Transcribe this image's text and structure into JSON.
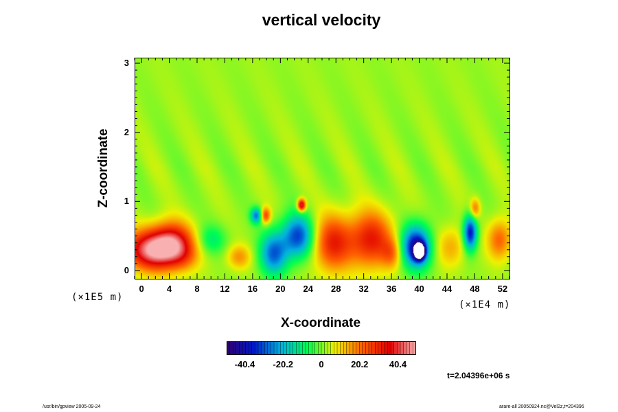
{
  "chart_data": {
    "type": "heatmap",
    "title": "vertical velocity",
    "xlabel": "X-coordinate",
    "ylabel": "Z-coordinate",
    "x_scale_label": "(×1E4 m)",
    "y_scale_label": "(×1E5 m)",
    "xlim": [
      -1,
      53
    ],
    "ylim": [
      -0.12,
      3.08
    ],
    "x_ticks": [
      0,
      4,
      8,
      12,
      16,
      20,
      24,
      28,
      32,
      36,
      40,
      44,
      48,
      52
    ],
    "x_tick_labels": [
      "0",
      "4",
      "8",
      "12",
      "16",
      "20",
      "24",
      "28",
      "32",
      "36",
      "40",
      "44",
      "48",
      "52"
    ],
    "y_ticks": [
      0,
      1,
      2,
      3
    ],
    "y_tick_labels": [
      "0",
      "1",
      "2",
      "3"
    ],
    "colorbar": {
      "range": [
        -50,
        50
      ],
      "ticks": [
        -40.4,
        -20.2,
        0,
        20.2,
        40.4
      ],
      "tick_labels": [
        "-40.4",
        "-20.2",
        "0",
        "20.2",
        "40.4"
      ],
      "colors": [
        "#300070",
        "#0018c8",
        "#00b0e0",
        "#00ff50",
        "#f0f000",
        "#ff6000",
        "#e00000",
        "#f8b0b0"
      ]
    },
    "background_value": 2,
    "features": [
      {
        "x": 2.0,
        "z": 0.3,
        "sx": 3.0,
        "sz": 0.2,
        "value": 48
      },
      {
        "x": 4.5,
        "z": 0.45,
        "sx": 2.0,
        "sz": 0.2,
        "value": 22
      },
      {
        "x": 6.0,
        "z": 0.2,
        "sx": 1.5,
        "sz": 0.15,
        "value": 8
      },
      {
        "x": 10.0,
        "z": 0.45,
        "sx": 1.5,
        "sz": 0.15,
        "value": -12
      },
      {
        "x": 14.0,
        "z": 0.2,
        "sx": 1.2,
        "sz": 0.12,
        "value": 14
      },
      {
        "x": 16.5,
        "z": 0.8,
        "sx": 0.6,
        "sz": 0.08,
        "value": -28
      },
      {
        "x": 17.8,
        "z": 0.8,
        "sx": 0.5,
        "sz": 0.08,
        "value": 25
      },
      {
        "x": 19.0,
        "z": 0.25,
        "sx": 1.4,
        "sz": 0.22,
        "value": -30
      },
      {
        "x": 22.5,
        "z": 0.5,
        "sx": 1.6,
        "sz": 0.22,
        "value": -34
      },
      {
        "x": 23.0,
        "z": 0.95,
        "sx": 0.4,
        "sz": 0.06,
        "value": 42
      },
      {
        "x": 27.5,
        "z": 0.4,
        "sx": 2.0,
        "sz": 0.28,
        "value": 28
      },
      {
        "x": 33.0,
        "z": 0.45,
        "sx": 2.2,
        "sz": 0.28,
        "value": 30
      },
      {
        "x": 36.0,
        "z": 0.25,
        "sx": 1.0,
        "sz": 0.15,
        "value": 14
      },
      {
        "x": 39.5,
        "z": 0.35,
        "sx": 1.5,
        "sz": 0.22,
        "value": -42
      },
      {
        "x": 40.0,
        "z": 0.28,
        "sx": 0.55,
        "sz": 0.08,
        "value": -60
      },
      {
        "x": 44.5,
        "z": 0.35,
        "sx": 1.5,
        "sz": 0.2,
        "value": 12
      },
      {
        "x": 47.3,
        "z": 0.55,
        "sx": 0.7,
        "sz": 0.18,
        "value": -40
      },
      {
        "x": 48.0,
        "z": 0.9,
        "sx": 0.5,
        "sz": 0.1,
        "value": 18
      },
      {
        "x": 51.5,
        "z": 0.45,
        "sx": 1.2,
        "sz": 0.2,
        "value": 20
      }
    ]
  },
  "time_label": "t=2.04396e+06 s",
  "footer_left": "/usr/bin/gpview 2005-09-24",
  "footer_right": "arare-all 20050924.nc@Vel2z,t=204396"
}
